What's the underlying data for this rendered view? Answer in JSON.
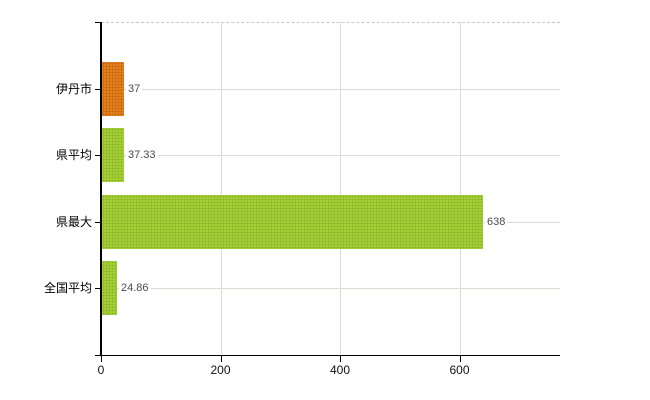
{
  "chart_data": {
    "type": "bar",
    "orientation": "horizontal",
    "title": "",
    "categories": [
      "伊丹市",
      "県平均",
      "県最大",
      "全国平均"
    ],
    "values": [
      37,
      37.33,
      638,
      24.86
    ],
    "value_labels": [
      "37",
      "37.33",
      "638",
      "24.86"
    ],
    "bar_colors": [
      "#e2811d",
      "#a5ce37",
      "#a5ce37",
      "#a5ce37"
    ],
    "bar_dot_colors": [
      "#c4650d",
      "#8cb525",
      "#8cb525",
      "#8cb525"
    ],
    "x_ticks": [
      0,
      200,
      400,
      600
    ],
    "x_tick_labels": [
      "0",
      "200",
      "400",
      "600"
    ],
    "xlim": [
      0,
      768
    ],
    "grid": true,
    "legend": false
  },
  "colors": {
    "highlight_bar": "#e2811d",
    "default_bar": "#a5ce37",
    "h_grid": "#d7ddd0",
    "v_grid": "#dcdcdc",
    "axis": "#000000",
    "dashed_border": "#c9c9c9",
    "value_label_text": "#4c4c4c",
    "tick_label_text": "#111111",
    "background": "#ffffff"
  }
}
